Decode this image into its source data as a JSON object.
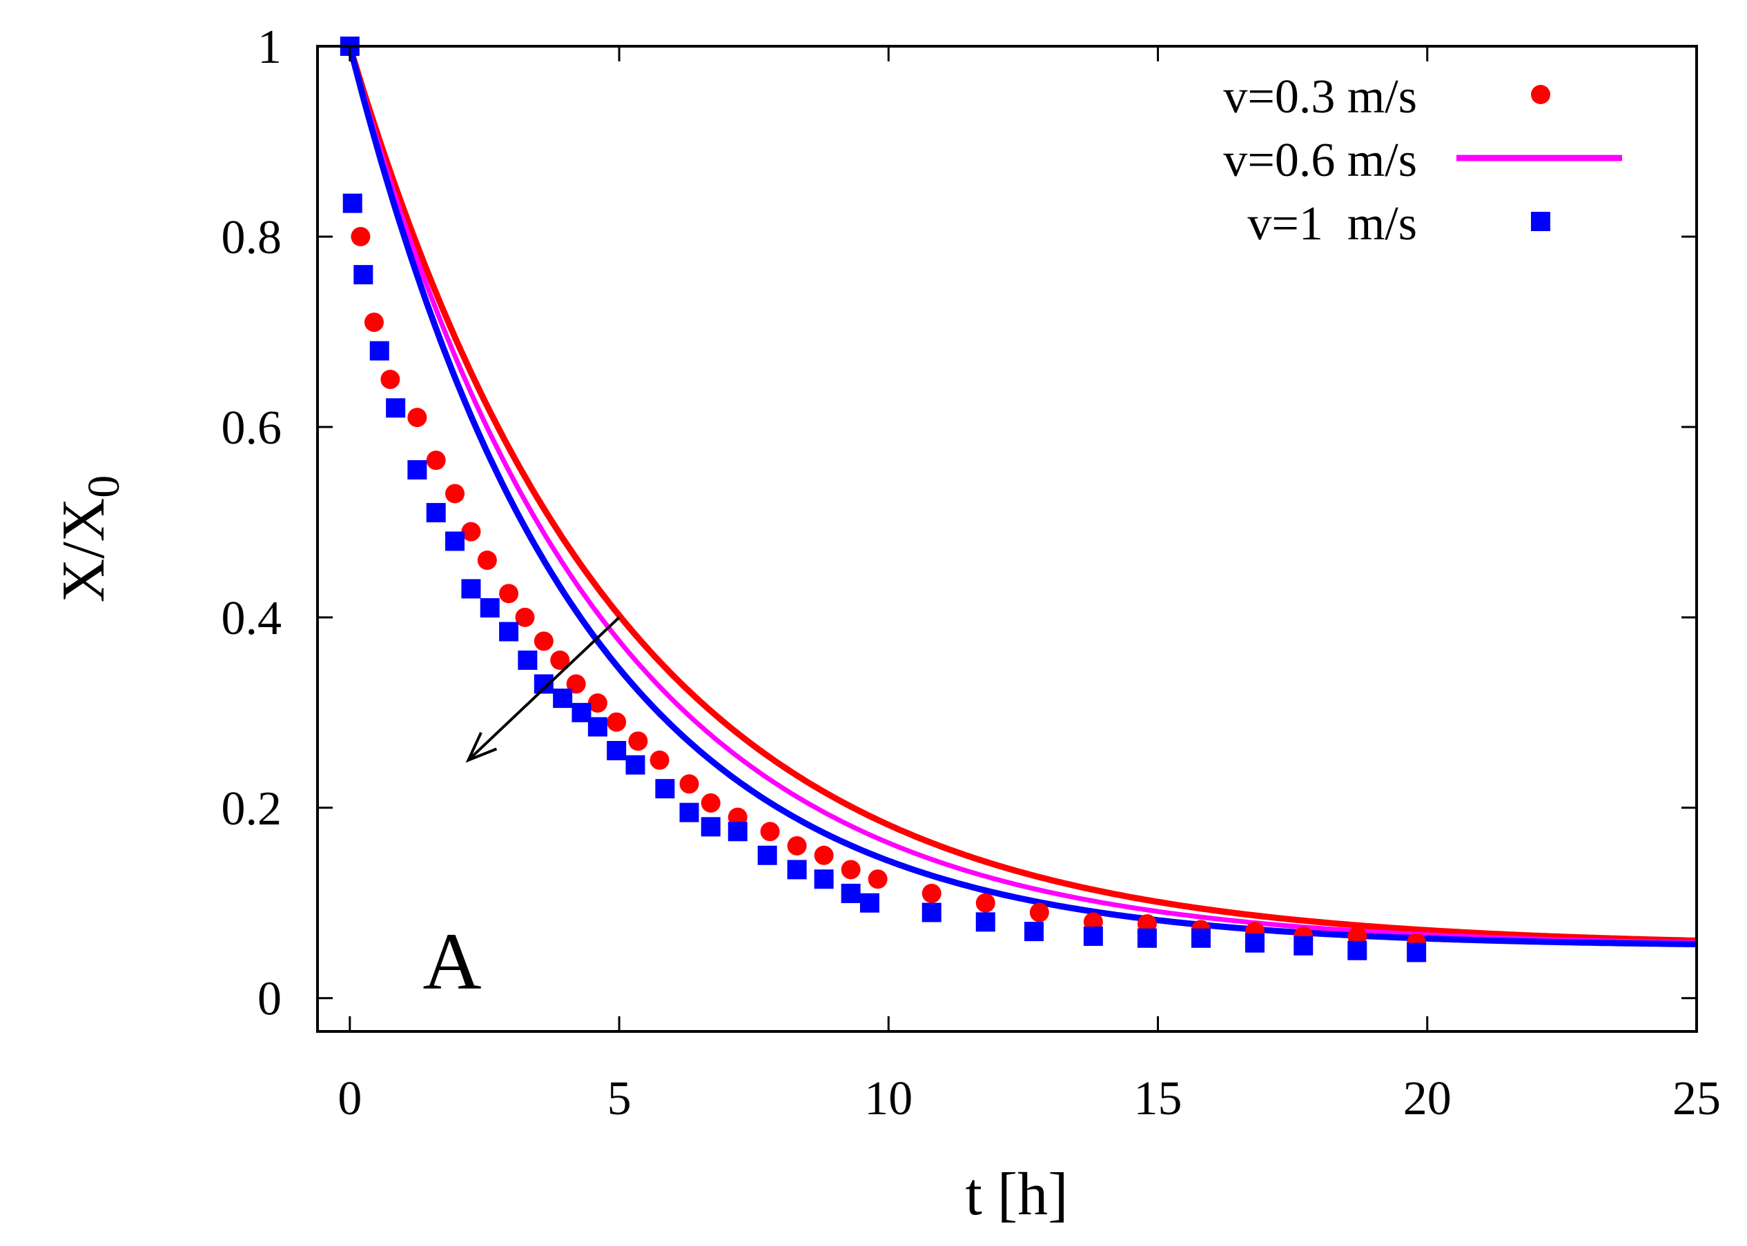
{
  "chart_data": {
    "type": "scatter",
    "title": "",
    "xlabel": "t [h]",
    "ylabel_main": "X/X",
    "ylabel_sub": "0",
    "xlim": [
      -0.6,
      25
    ],
    "ylim": [
      -0.035,
      1.0
    ],
    "xticks": [
      0,
      5,
      10,
      15,
      20,
      25
    ],
    "xtick_labels": [
      "0",
      "5",
      "10",
      "15",
      "20",
      "25"
    ],
    "yticks": [
      0,
      0.2,
      0.4,
      0.6,
      0.8,
      1
    ],
    "ytick_labels": [
      "0",
      "0.2",
      "0.4",
      "0.6",
      "0.8",
      "1"
    ],
    "panel_label": "A",
    "legend_position": "top-right",
    "arrow": {
      "from": [
        5.0,
        0.4
      ],
      "to": [
        2.2,
        0.25
      ]
    },
    "colors": {
      "red": "#ff0000",
      "magenta": "#ff00ff",
      "blue": "#0000ff"
    },
    "series": [
      {
        "name": "v=0.3 m/s",
        "color": "#ff0000",
        "marker": "circle",
        "x": [
          0.0,
          0.2,
          0.45,
          0.75,
          1.25,
          1.6,
          1.95,
          2.25,
          2.55,
          2.95,
          3.25,
          3.6,
          3.9,
          4.2,
          4.6,
          4.95,
          5.35,
          5.75,
          6.3,
          6.7,
          7.2,
          7.8,
          8.3,
          8.8,
          9.3,
          9.8,
          10.8,
          11.8,
          12.8,
          13.8,
          14.8,
          15.8,
          16.8,
          17.7,
          18.7,
          19.8
        ],
        "y": [
          1.0,
          0.8,
          0.71,
          0.65,
          0.61,
          0.565,
          0.53,
          0.49,
          0.46,
          0.425,
          0.4,
          0.375,
          0.355,
          0.33,
          0.31,
          0.29,
          0.27,
          0.25,
          0.225,
          0.205,
          0.19,
          0.175,
          0.16,
          0.15,
          0.135,
          0.125,
          0.11,
          0.1,
          0.09,
          0.08,
          0.078,
          0.072,
          0.07,
          0.065,
          0.065,
          0.058
        ],
        "fit": {
          "a": 0.946,
          "b": 0.054,
          "k": 0.2
        }
      },
      {
        "name": "v=0.6 m/s",
        "color": "#ff00ff",
        "marker": "line",
        "fit": {
          "a": 0.946,
          "b": 0.054,
          "k": 0.216
        }
      },
      {
        "name": "v=1  m/s",
        "color": "#0000ff",
        "marker": "square",
        "x": [
          0.0,
          0.05,
          0.25,
          0.55,
          0.85,
          1.25,
          1.6,
          1.95,
          2.25,
          2.6,
          2.95,
          3.3,
          3.6,
          3.95,
          4.3,
          4.6,
          4.95,
          5.3,
          5.85,
          6.3,
          6.7,
          7.2,
          7.75,
          8.3,
          8.8,
          9.3,
          9.65,
          10.8,
          11.8,
          12.7,
          13.8,
          14.8,
          15.8,
          16.8,
          17.7,
          18.7,
          19.8
        ],
        "y": [
          1.0,
          0.835,
          0.76,
          0.68,
          0.62,
          0.555,
          0.51,
          0.48,
          0.43,
          0.41,
          0.385,
          0.355,
          0.33,
          0.315,
          0.3,
          0.285,
          0.26,
          0.245,
          0.22,
          0.195,
          0.18,
          0.175,
          0.15,
          0.135,
          0.125,
          0.11,
          0.1,
          0.09,
          0.08,
          0.07,
          0.065,
          0.063,
          0.063,
          0.058,
          0.055,
          0.05,
          0.048
        ],
        "fit": {
          "a": 0.946,
          "b": 0.054,
          "k": 0.235
        }
      }
    ]
  }
}
